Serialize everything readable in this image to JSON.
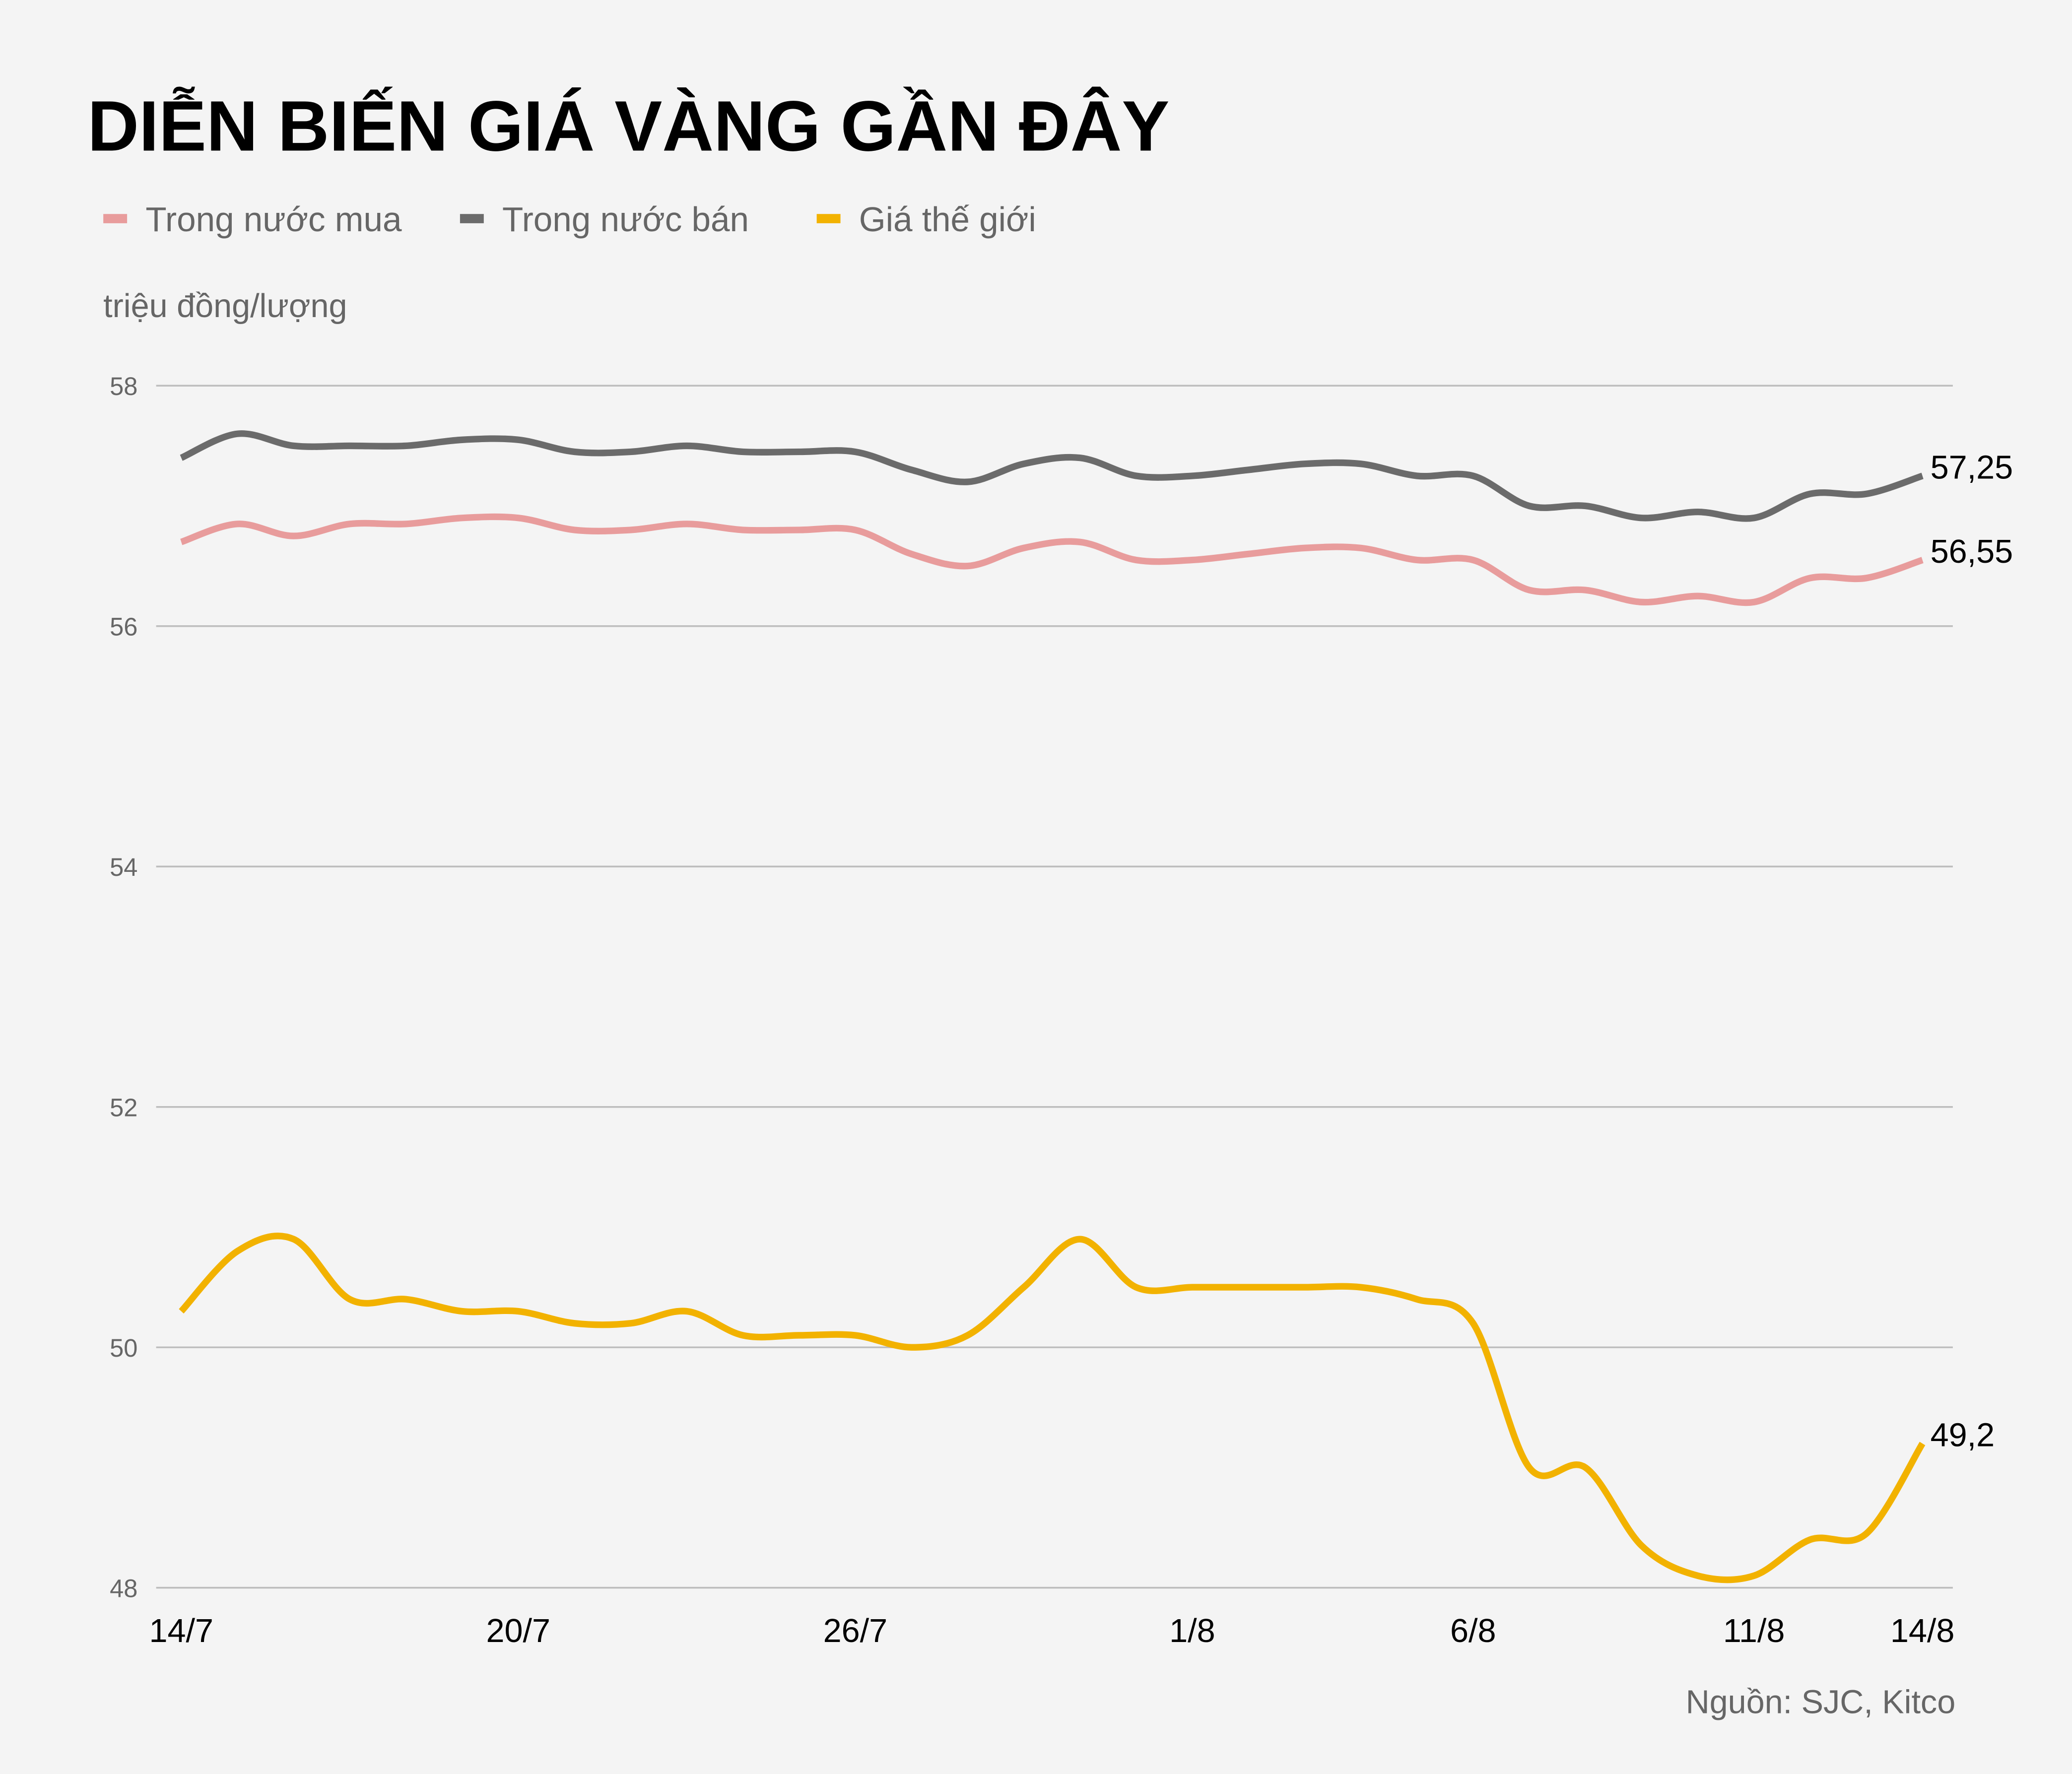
{
  "chart_data": {
    "type": "line",
    "title": "DIỄN BIẾN GIÁ VÀNG GẦN ĐÂY",
    "ylabel": "triệu đồng/lượng",
    "source": "Nguồn: SJC, Kitco",
    "ylim": [
      48,
      58
    ],
    "yticks": [
      48,
      50,
      52,
      54,
      56,
      58
    ],
    "grid": true,
    "legend_position": "top-left",
    "x": [
      "14/7",
      "15/7",
      "16/7",
      "17/7",
      "18/7",
      "19/7",
      "20/7",
      "21/7",
      "22/7",
      "23/7",
      "24/7",
      "25/7",
      "26/7",
      "27/7",
      "28/7",
      "29/7",
      "30/7",
      "31/7",
      "1/8",
      "2/8",
      "3/8",
      "4/8",
      "5/8",
      "6/8",
      "7/8",
      "8/8",
      "9/8",
      "10/8",
      "11/8",
      "12/8",
      "13/8",
      "14/8"
    ],
    "xtick_labels": [
      "14/7",
      "20/7",
      "26/7",
      "1/8",
      "6/8",
      "11/8",
      "14/8"
    ],
    "series": [
      {
        "name": "Trong nước mua",
        "color": "#e89c9c",
        "end_label": "56,55",
        "values": [
          56.7,
          56.85,
          56.75,
          56.85,
          56.85,
          56.9,
          56.9,
          56.8,
          56.8,
          56.85,
          56.8,
          56.8,
          56.8,
          56.6,
          56.5,
          56.65,
          56.7,
          56.55,
          56.55,
          56.6,
          56.65,
          56.65,
          56.55,
          56.55,
          56.3,
          56.3,
          56.2,
          56.25,
          56.2,
          56.4,
          56.4,
          56.55
        ]
      },
      {
        "name": "Trong nước bán",
        "color": "#6b6b6b",
        "end_label": "57,25",
        "values": [
          57.4,
          57.6,
          57.5,
          57.5,
          57.5,
          57.55,
          57.55,
          57.45,
          57.45,
          57.5,
          57.45,
          57.45,
          57.45,
          57.3,
          57.2,
          57.35,
          57.4,
          57.25,
          57.25,
          57.3,
          57.35,
          57.35,
          57.25,
          57.25,
          57.0,
          57.0,
          56.9,
          56.95,
          56.9,
          57.1,
          57.1,
          57.25
        ]
      },
      {
        "name": "Giá thế giới",
        "color": "#f2b200",
        "end_label": "49,2",
        "values": [
          50.3,
          50.8,
          50.9,
          50.4,
          50.4,
          50.3,
          50.3,
          50.2,
          50.2,
          50.3,
          50.1,
          50.1,
          50.1,
          50.0,
          50.1,
          50.5,
          50.9,
          50.5,
          50.5,
          50.5,
          50.5,
          50.5,
          50.4,
          50.2,
          49.0,
          49.0,
          48.35,
          48.1,
          48.1,
          48.4,
          48.45,
          49.2
        ]
      }
    ]
  }
}
